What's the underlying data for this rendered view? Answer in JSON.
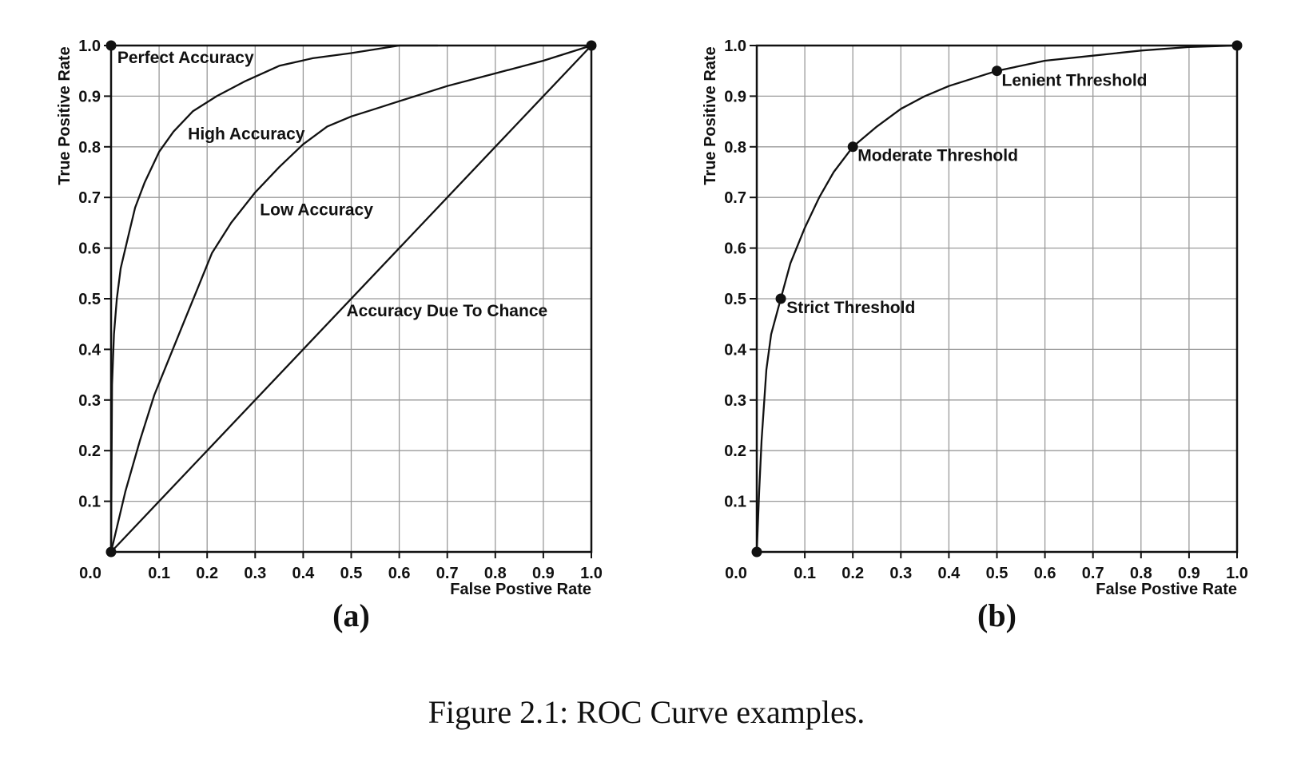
{
  "figure_caption": "Figure 2.1: ROC Curve examples.",
  "chart_data": [
    {
      "type": "line",
      "panel_label": "(a)",
      "xlabel": "False Postive Rate",
      "ylabel": "True Positive Rate",
      "xlim": [
        0,
        1
      ],
      "ylim": [
        0,
        1
      ],
      "grid": true,
      "x_ticks": [
        "0.0",
        "0.1",
        "0.2",
        "0.3",
        "0.4",
        "0.5",
        "0.6",
        "0.7",
        "0.8",
        "0.9",
        "1.0"
      ],
      "y_ticks": [
        "0.1",
        "0.2",
        "0.3",
        "0.4",
        "0.5",
        "0.6",
        "0.7",
        "0.8",
        "0.9",
        "1.0"
      ],
      "series": [
        {
          "x": [
            0,
            0.002,
            0.006,
            0.012,
            0.02,
            0.035,
            0.05,
            0.07,
            0.1,
            0.13,
            0.17,
            0.22,
            0.28,
            0.35,
            0.42,
            0.5,
            0.6,
            0.68
          ],
          "y": [
            0,
            0.33,
            0.43,
            0.5,
            0.56,
            0.62,
            0.68,
            0.73,
            0.79,
            0.83,
            0.87,
            0.9,
            0.93,
            0.96,
            0.975,
            0.985,
            1.0,
            1.0
          ]
        },
        {
          "x": [
            0,
            0.03,
            0.06,
            0.09,
            0.12,
            0.15,
            0.18,
            0.21,
            0.25,
            0.3,
            0.35,
            0.4,
            0.45,
            0.5,
            0.55,
            0.6,
            0.65,
            0.7,
            0.8,
            0.9,
            1.0
          ],
          "y": [
            0,
            0.12,
            0.22,
            0.31,
            0.38,
            0.45,
            0.52,
            0.59,
            0.65,
            0.71,
            0.76,
            0.805,
            0.84,
            0.86,
            0.875,
            0.89,
            0.905,
            0.92,
            0.945,
            0.97,
            1.0
          ]
        },
        {
          "x": [
            0,
            1
          ],
          "y": [
            0,
            1
          ]
        }
      ],
      "points": [
        {
          "x": 0,
          "y": 1.0
        },
        {
          "x": 1.0,
          "y": 1.0
        },
        {
          "x": 0,
          "y": 0
        }
      ],
      "annotations": [
        {
          "text": "Perfect Accuracy",
          "x": 0.013,
          "y": 0.965
        },
        {
          "text": "High Accuracy",
          "x": 0.16,
          "y": 0.815
        },
        {
          "text": "Low Accuracy",
          "x": 0.31,
          "y": 0.665
        },
        {
          "text": "Accuracy Due To Chance",
          "x": 0.49,
          "y": 0.465
        }
      ]
    },
    {
      "type": "line",
      "panel_label": "(b)",
      "xlabel": "False Postive Rate",
      "ylabel": "True Positive Rate",
      "xlim": [
        0,
        1
      ],
      "ylim": [
        0,
        1
      ],
      "grid": true,
      "x_ticks": [
        "0.0",
        "0.1",
        "0.2",
        "0.3",
        "0.4",
        "0.5",
        "0.6",
        "0.7",
        "0.8",
        "0.9",
        "1.0"
      ],
      "y_ticks": [
        "0.1",
        "0.2",
        "0.3",
        "0.4",
        "0.5",
        "0.6",
        "0.7",
        "0.8",
        "0.9",
        "1.0"
      ],
      "series": [
        {
          "x": [
            0,
            0.005,
            0.01,
            0.02,
            0.03,
            0.05,
            0.07,
            0.1,
            0.13,
            0.16,
            0.2,
            0.25,
            0.3,
            0.35,
            0.4,
            0.45,
            0.5,
            0.55,
            0.6,
            0.7,
            0.8,
            0.9,
            1.0
          ],
          "y": [
            0,
            0.12,
            0.22,
            0.36,
            0.43,
            0.5,
            0.57,
            0.64,
            0.7,
            0.75,
            0.8,
            0.84,
            0.875,
            0.9,
            0.92,
            0.935,
            0.95,
            0.96,
            0.97,
            0.98,
            0.99,
            0.997,
            1.0
          ]
        }
      ],
      "points": [
        {
          "x": 0,
          "y": 0
        },
        {
          "x": 0.05,
          "y": 0.5
        },
        {
          "x": 0.2,
          "y": 0.8
        },
        {
          "x": 0.5,
          "y": 0.95
        },
        {
          "x": 1.0,
          "y": 1.0
        }
      ],
      "annotations": [
        {
          "text": "Lenient Threshold",
          "x": 0.51,
          "y": 0.92
        },
        {
          "text": "Moderate Threshold",
          "x": 0.21,
          "y": 0.772
        },
        {
          "text": "Strict Threshold",
          "x": 0.062,
          "y": 0.472
        }
      ]
    }
  ]
}
